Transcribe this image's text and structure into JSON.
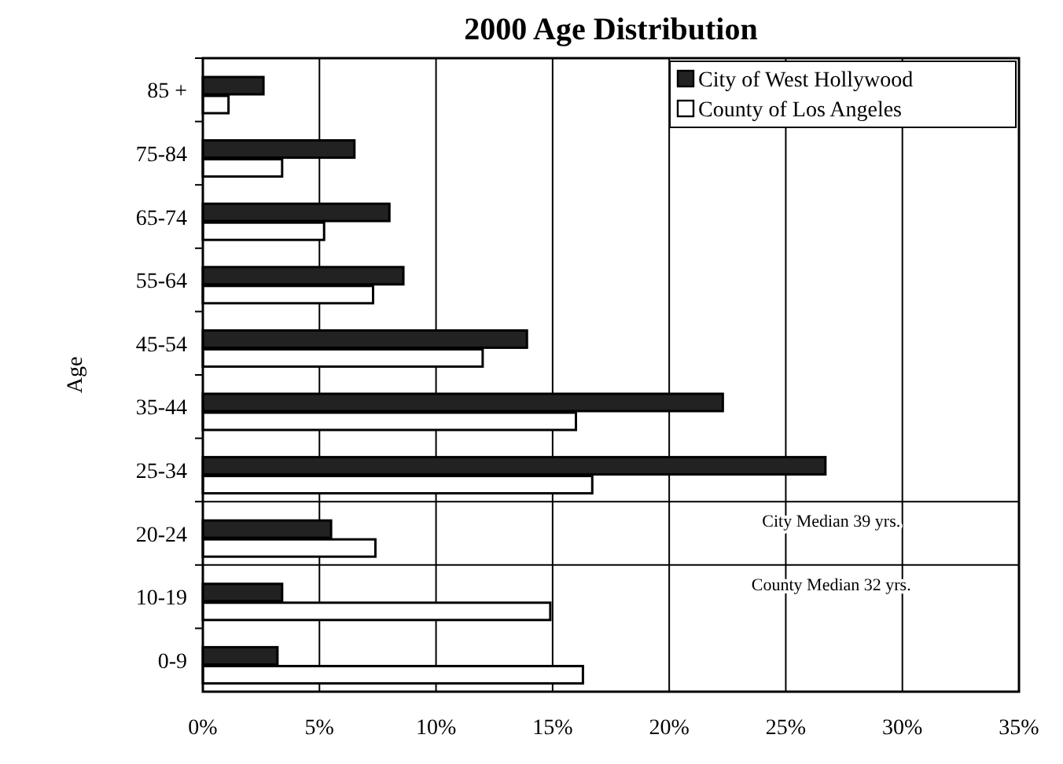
{
  "chart_data": {
    "type": "bar",
    "orientation": "horizontal",
    "title": "2000 Age Distribution",
    "ylabel": "Age",
    "categories": [
      "85 +",
      "75-84",
      "65-74",
      "55-64",
      "45-54",
      "35-44",
      "25-34",
      "20-24",
      "10-19",
      "0-9"
    ],
    "series": [
      {
        "name": "City of West Hollywood",
        "color": "#222222",
        "values": [
          2.6,
          6.5,
          8.0,
          8.6,
          13.9,
          22.3,
          26.7,
          5.5,
          3.4,
          3.2
        ]
      },
      {
        "name": "County of Los Angeles",
        "color": "#ffffff",
        "values": [
          1.1,
          3.4,
          5.2,
          7.3,
          12.0,
          16.0,
          16.7,
          7.4,
          14.9,
          16.3
        ]
      }
    ],
    "xlim": [
      0,
      35
    ],
    "xticks": [
      {
        "value": 0,
        "label": "0%"
      },
      {
        "value": 5,
        "label": "5%"
      },
      {
        "value": 10,
        "label": "10%"
      },
      {
        "value": 15,
        "label": "15%"
      },
      {
        "value": 20,
        "label": "20%"
      },
      {
        "value": 25,
        "label": "25%"
      },
      {
        "value": 30,
        "label": "30%"
      },
      {
        "value": 35,
        "label": "35%"
      }
    ],
    "ref_lines": [
      {
        "axis": "y",
        "value": "25-34",
        "label": "City Median 39 yrs."
      },
      {
        "axis": "y",
        "value": "20-24",
        "label": "County Median 32 yrs."
      }
    ],
    "grid": "x",
    "legend": "top right"
  }
}
